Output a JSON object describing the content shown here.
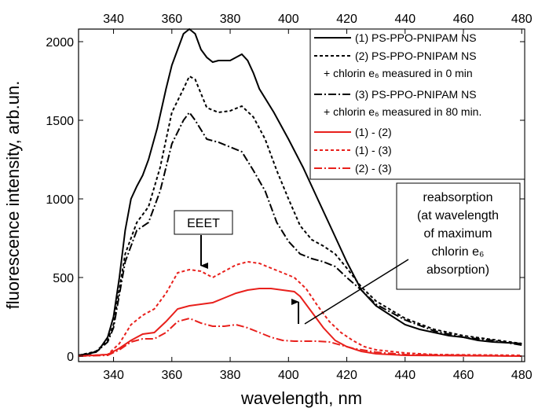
{
  "chart_data": {
    "type": "line",
    "x_label": "wavelength, nm",
    "y_label": "fluorescence intensity, arb.un.",
    "xlim": [
      328,
      481
    ],
    "ylim": [
      -35,
      2080
    ],
    "xticks": [
      340,
      360,
      380,
      400,
      420,
      440,
      460,
      480
    ],
    "yticks": [
      0,
      500,
      1000,
      1500,
      2000
    ],
    "top_axis_labels": true,
    "legend": "upper right",
    "series": [
      {
        "name": "(1) PS-PPO-PNIPAM NS",
        "color": "#000000",
        "dash": "solid",
        "x": [
          328,
          332,
          335,
          338,
          340,
          342,
          344,
          346,
          348,
          350,
          352,
          355,
          358,
          360,
          362,
          364,
          366,
          368,
          370,
          372,
          374,
          376,
          378,
          380,
          382,
          384,
          386,
          388,
          390,
          395,
          400,
          405,
          410,
          415,
          420,
          425,
          430,
          435,
          440,
          445,
          450,
          455,
          460,
          465,
          470,
          475,
          480
        ],
        "values": [
          5,
          15,
          40,
          120,
          250,
          500,
          800,
          1000,
          1080,
          1150,
          1250,
          1450,
          1700,
          1850,
          1950,
          2050,
          2080,
          2050,
          1950,
          1900,
          1870,
          1880,
          1880,
          1880,
          1900,
          1920,
          1880,
          1800,
          1700,
          1550,
          1380,
          1200,
          1000,
          800,
          600,
          420,
          320,
          260,
          200,
          170,
          150,
          130,
          120,
          100,
          90,
          85,
          80
        ]
      },
      {
        "name": "(2) PS-PPO-PNIPAM NS\n+ chlorin e₆ measured in 0 min",
        "color": "#000000",
        "dash": "dotted",
        "x": [
          328,
          334,
          338,
          340,
          344,
          348,
          352,
          356,
          360,
          364,
          366,
          368,
          372,
          376,
          380,
          384,
          388,
          392,
          396,
          400,
          404,
          408,
          412,
          416,
          420,
          425,
          430,
          440,
          450,
          460,
          470,
          480
        ],
        "values": [
          5,
          30,
          100,
          200,
          650,
          850,
          950,
          1200,
          1550,
          1700,
          1780,
          1760,
          1580,
          1550,
          1560,
          1590,
          1520,
          1380,
          1180,
          1000,
          830,
          740,
          700,
          650,
          560,
          440,
          350,
          240,
          170,
          130,
          105,
          80
        ]
      },
      {
        "name": "(3) PS-PPO-PNIPAM NS\n+ chlorin e₆ measured in 80 min.",
        "color": "#000000",
        "dash": "dashdot",
        "x": [
          328,
          334,
          338,
          340,
          344,
          348,
          352,
          356,
          360,
          364,
          366,
          368,
          372,
          376,
          380,
          384,
          388,
          392,
          396,
          400,
          404,
          408,
          412,
          416,
          420,
          425,
          430,
          440,
          450,
          460,
          470,
          480
        ],
        "values": [
          5,
          25,
          90,
          180,
          600,
          800,
          850,
          1050,
          1350,
          1500,
          1550,
          1500,
          1380,
          1360,
          1330,
          1300,
          1180,
          1050,
          850,
          730,
          650,
          620,
          600,
          570,
          500,
          420,
          330,
          230,
          160,
          120,
          100,
          70
        ]
      },
      {
        "name": "(1) - (2)",
        "color": "#e8201c",
        "dash": "solid",
        "x": [
          328,
          338,
          342,
          346,
          350,
          354,
          358,
          362,
          366,
          370,
          374,
          378,
          382,
          386,
          390,
          394,
          398,
          402,
          404,
          408,
          412,
          416,
          420,
          425,
          430,
          440,
          480
        ],
        "values": [
          0,
          10,
          50,
          100,
          140,
          150,
          220,
          300,
          320,
          330,
          340,
          370,
          400,
          420,
          430,
          430,
          420,
          410,
          380,
          280,
          180,
          100,
          60,
          30,
          15,
          5,
          0
        ]
      },
      {
        "name": "(1) - (3)",
        "color": "#e8201c",
        "dash": "dotted",
        "x": [
          328,
          338,
          342,
          346,
          350,
          354,
          358,
          362,
          366,
          370,
          374,
          378,
          382,
          386,
          390,
          394,
          398,
          402,
          406,
          410,
          414,
          418,
          422,
          426,
          430,
          440,
          450,
          480
        ],
        "values": [
          0,
          10,
          80,
          200,
          260,
          300,
          400,
          530,
          550,
          540,
          500,
          540,
          580,
          600,
          590,
          560,
          530,
          500,
          430,
          320,
          220,
          150,
          100,
          60,
          40,
          20,
          10,
          5
        ]
      },
      {
        "name": "(2) - (3)",
        "color": "#e8201c",
        "dash": "dashdot",
        "x": [
          328,
          338,
          342,
          346,
          350,
          354,
          358,
          362,
          366,
          370,
          374,
          378,
          382,
          386,
          390,
          394,
          398,
          402,
          410,
          414,
          418,
          422,
          430,
          440,
          480
        ],
        "values": [
          0,
          5,
          40,
          90,
          110,
          110,
          150,
          220,
          240,
          210,
          190,
          190,
          200,
          180,
          150,
          120,
          100,
          95,
          95,
          90,
          70,
          50,
          25,
          10,
          0
        ]
      }
    ],
    "annotations": [
      {
        "text": "EEET"
      },
      {
        "text": "reabsorption\n(at wavelength\nof maximum\nchlorin e₆\nabsorption)"
      }
    ]
  }
}
